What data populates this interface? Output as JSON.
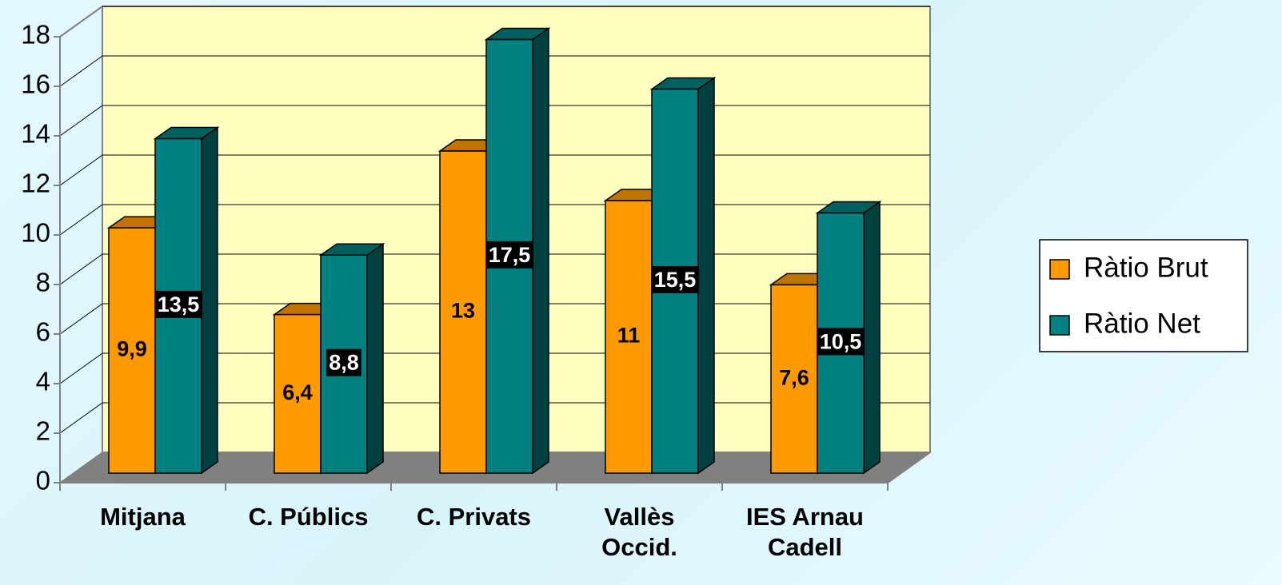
{
  "chart_data": {
    "type": "bar3d",
    "categories": [
      "Mitjana",
      "C. Públics",
      "C. Privats",
      "Vallès\nOccid.",
      "IES Arnau\nCadell"
    ],
    "series": [
      {
        "name": "Ràtio Brut",
        "color": "#ff9900",
        "values": [
          9.9,
          6.4,
          13,
          11,
          7.6
        ],
        "value_labels": [
          "9,9",
          "6,4",
          "13",
          "11",
          "7,6"
        ]
      },
      {
        "name": "Ràtio Net",
        "color": "#008080",
        "values": [
          13.5,
          8.8,
          17.5,
          15.5,
          10.5
        ],
        "value_labels": [
          "13,5",
          "8,8",
          "17,5",
          "15,5",
          "10,5"
        ]
      }
    ],
    "ylim": [
      0,
      18
    ],
    "yticks": [
      0,
      2,
      4,
      6,
      8,
      10,
      12,
      14,
      16,
      18
    ],
    "grid": true,
    "legend": "right"
  }
}
